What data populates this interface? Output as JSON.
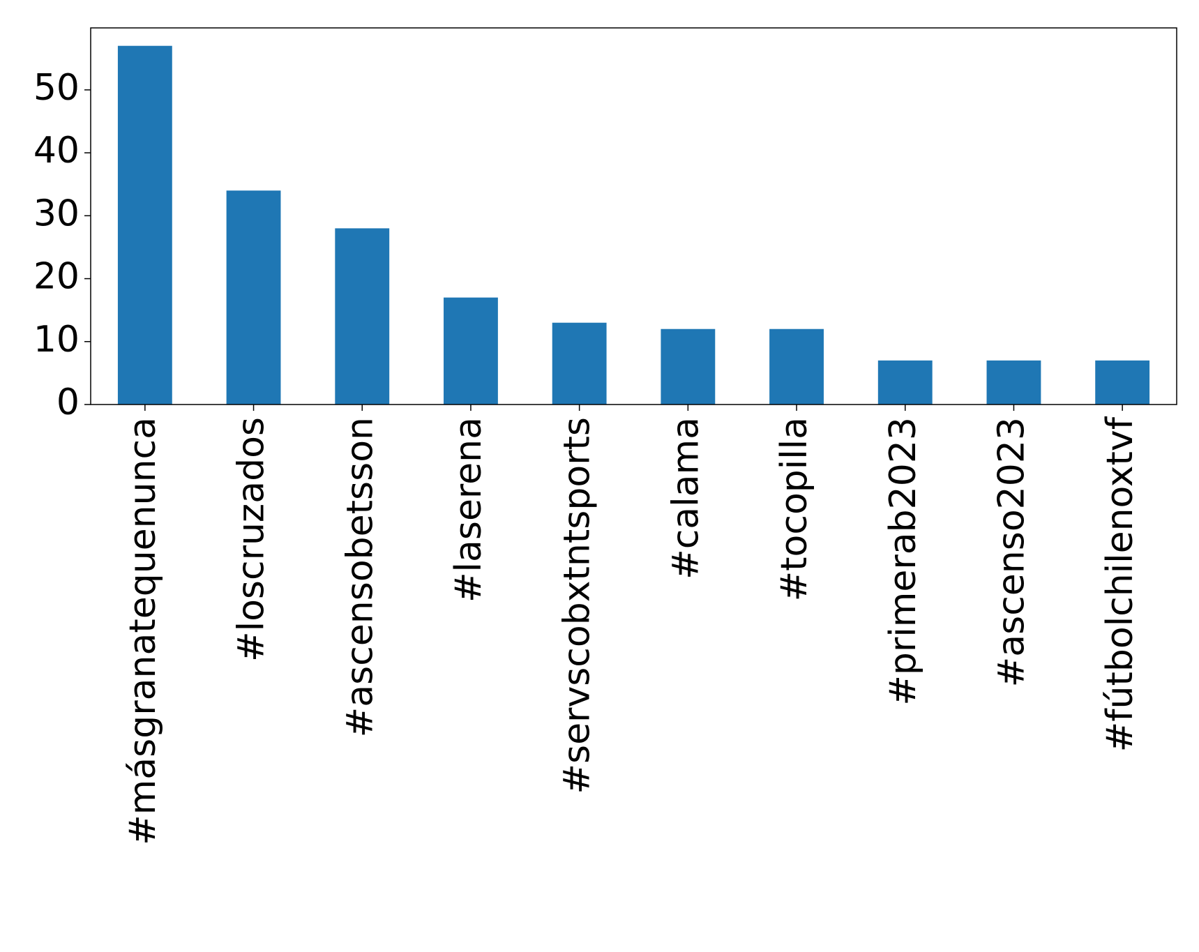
{
  "chart_data": {
    "type": "bar",
    "categories": [
      "#másgranatequenunca",
      "#loscruzados",
      "#ascensobetsson",
      "#laserena",
      "#servscobxtntsports",
      "#calama",
      "#tocopilla",
      "#primerab2023",
      "#ascenso2023",
      "#fútbolchilenoxtvf"
    ],
    "values": [
      57,
      34,
      28,
      17,
      13,
      12,
      12,
      7,
      7,
      7
    ],
    "color": "#1f77b4",
    "ylim": [
      0,
      59.85
    ],
    "yticks": [
      0,
      10,
      20,
      30,
      40,
      50
    ],
    "grid": false
  }
}
